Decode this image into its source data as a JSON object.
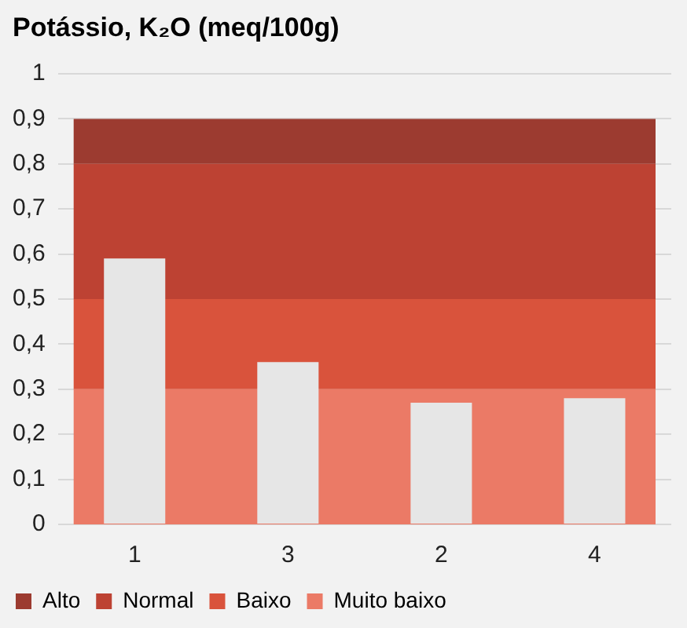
{
  "chart_data": {
    "type": "bar",
    "title": "Potássio, K₂O (meq/100g)",
    "categories": [
      "1",
      "3",
      "2",
      "4"
    ],
    "series": [
      {
        "color": "#e6e6e6",
        "values": [
          0.59,
          0.36,
          0.27,
          0.28
        ]
      }
    ],
    "ylim": [
      0,
      1
    ],
    "yticks": [
      {
        "value": 0,
        "label": "0"
      },
      {
        "value": 0.1,
        "label": "0,1"
      },
      {
        "value": 0.2,
        "label": "0,2"
      },
      {
        "value": 0.3,
        "label": "0,3"
      },
      {
        "value": 0.4,
        "label": "0,4"
      },
      {
        "value": 0.5,
        "label": "0,5"
      },
      {
        "value": 0.6,
        "label": "0,6"
      },
      {
        "value": 0.7,
        "label": "0,7"
      },
      {
        "value": 0.8,
        "label": "0,8"
      },
      {
        "value": 0.9,
        "label": "0,9"
      },
      {
        "value": 1,
        "label": "1"
      }
    ],
    "bands": [
      {
        "axis": "y",
        "from": 0.8,
        "to": 0.9,
        "label": "Alto",
        "color": "#9c3b30"
      },
      {
        "axis": "y",
        "from": 0.5,
        "to": 0.8,
        "label": "Normal",
        "color": "#bd4233"
      },
      {
        "axis": "y",
        "from": 0.3,
        "to": 0.5,
        "label": "Baixo",
        "color": "#d9533c"
      },
      {
        "axis": "y",
        "from": 0,
        "to": 0.3,
        "label": "Muito baixo",
        "color": "#eb7a66"
      }
    ],
    "grid": "y",
    "legend": "bottom"
  }
}
